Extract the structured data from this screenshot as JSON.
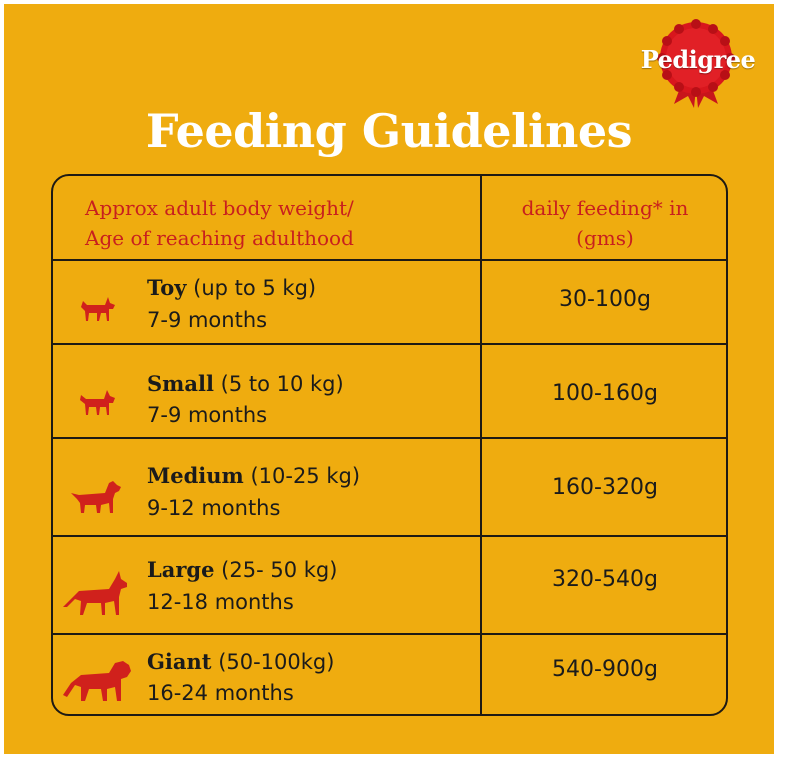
{
  "brand": {
    "name": "Pedigree"
  },
  "title": "Feeding Guidelines",
  "header": {
    "left_line1": "Approx adult body weight/",
    "left_line2": "Age of reaching adulthood",
    "right_line1": "daily feeding* in",
    "right_line2": "(gms)"
  },
  "rows": [
    {
      "size": "Toy",
      "range": "(up to 5 kg)",
      "age": "7-9 months",
      "amount": "30-100g",
      "icon": "toy-dog-icon"
    },
    {
      "size": "Small",
      "range": "(5 to 10 kg)",
      "age": "7-9 months",
      "amount": "100-160g",
      "icon": "small-dog-icon"
    },
    {
      "size": "Medium",
      "range": "(10-25 kg)",
      "age": "9-12 months",
      "amount": "160-320g",
      "icon": "medium-dog-icon"
    },
    {
      "size": "Large",
      "range": "(25- 50 kg)",
      "age": "12-18 months",
      "amount": "320-540g",
      "icon": "large-dog-icon"
    },
    {
      "size": "Giant",
      "range": "(50-100kg)",
      "age": "16-24 months",
      "amount": "540-900g",
      "icon": "giant-dog-icon"
    }
  ],
  "colors": {
    "background": "#EFAC0F",
    "accent": "#C8201E",
    "border": "#1e1a14",
    "title": "#FFFFFF"
  }
}
